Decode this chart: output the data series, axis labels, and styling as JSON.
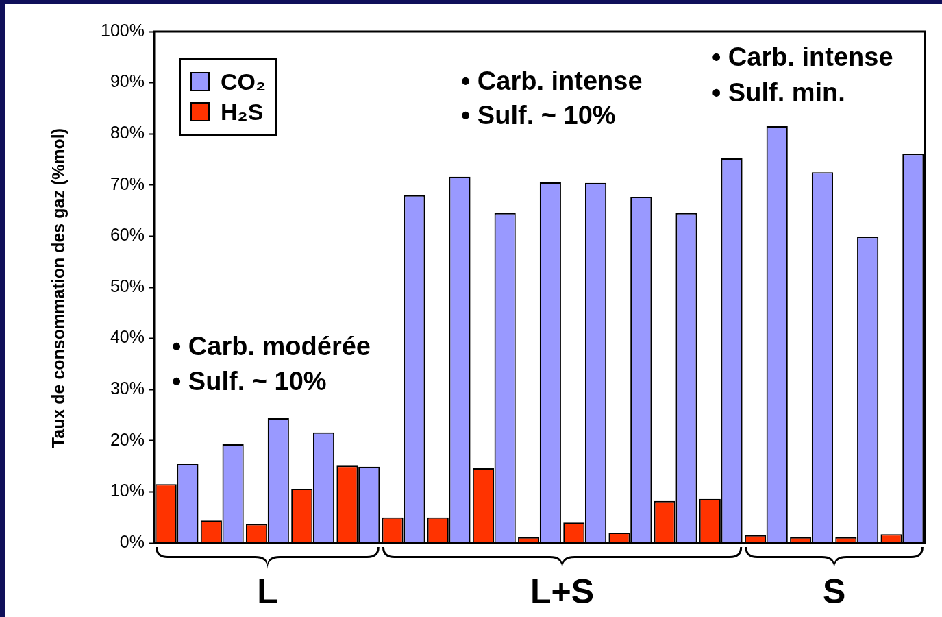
{
  "chart_data": {
    "type": "bar",
    "ylabel": "Taux de consommation des gaz (%mol)",
    "categories": [
      null,
      null,
      null,
      null,
      null,
      null,
      null,
      null,
      null,
      null,
      null,
      null,
      null,
      null,
      null,
      null,
      null
    ],
    "series": [
      {
        "name": "H₂S",
        "color": "#ff3300",
        "values": [
          11.5,
          4.4,
          3.7,
          10.6,
          15.1,
          5.0,
          5.0,
          14.6,
          1.1,
          4.0,
          2.0,
          8.2,
          8.6,
          1.5,
          1.1,
          1.1,
          1.7
        ]
      },
      {
        "name": "CO₂",
        "color": "#9999ff",
        "values": [
          15.4,
          19.3,
          24.4,
          21.6,
          14.9,
          68.0,
          71.6,
          64.5,
          70.5,
          70.4,
          67.7,
          64.5,
          75.2,
          81.5,
          72.5,
          59.9,
          76.1
        ]
      }
    ],
    "ylim": [
      0,
      100
    ],
    "yticks": [
      {
        "value": 0,
        "label": "0%"
      },
      {
        "value": 10,
        "label": "10%"
      },
      {
        "value": 20,
        "label": "20%"
      },
      {
        "value": 30,
        "label": "30%"
      },
      {
        "value": 40,
        "label": "40%"
      },
      {
        "value": 50,
        "label": "50%"
      },
      {
        "value": 60,
        "label": "60%"
      },
      {
        "value": 70,
        "label": "70%"
      },
      {
        "value": 80,
        "label": "80%"
      },
      {
        "value": 90,
        "label": "90%"
      },
      {
        "value": 100,
        "label": "100%"
      }
    ],
    "grid": false,
    "legend": "top left",
    "annotations": [
      "• Carb. modérée",
      "• Sulf. ~ 10%",
      "• Carb. intense",
      "• Sulf. ~ 10%",
      "• Carb. intense",
      "• Sulf. min.",
      "L",
      "L+S",
      "S"
    ]
  }
}
